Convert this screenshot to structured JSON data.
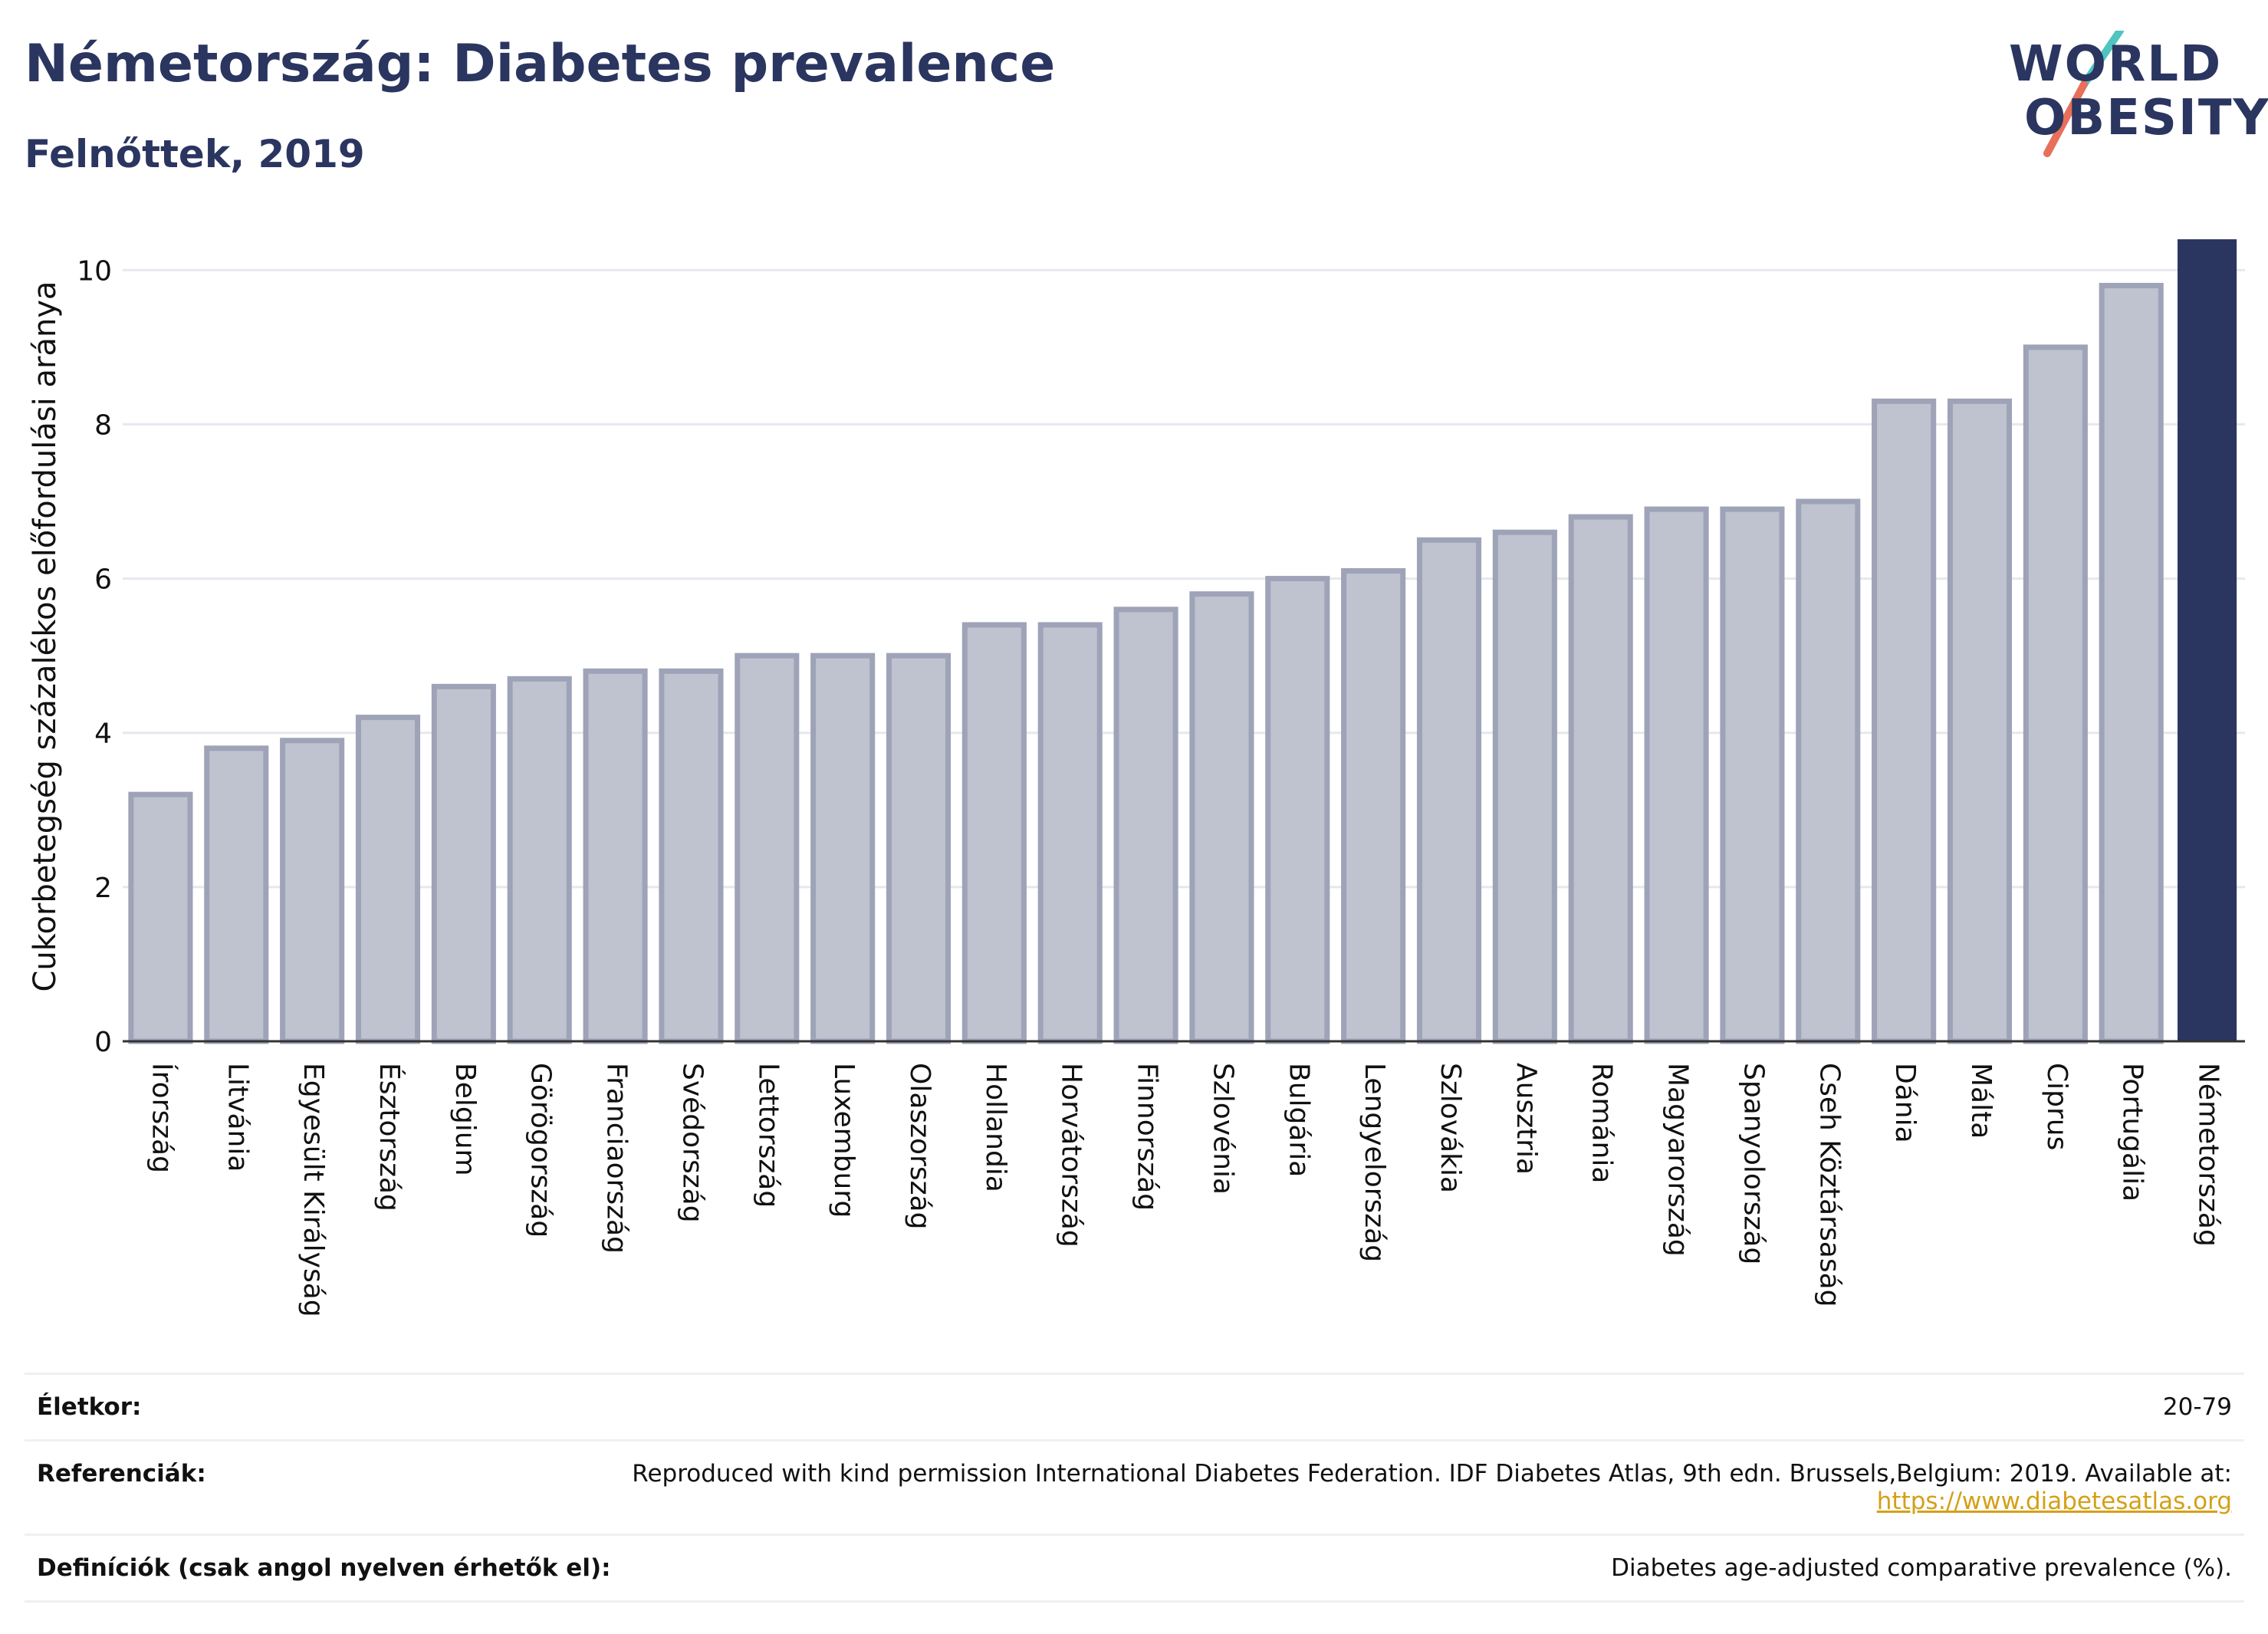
{
  "header": {
    "title": "Németország: Diabetes prevalence",
    "subtitle": "Felnőttek, 2019"
  },
  "logo": {
    "line1": "WORLD",
    "line2": "OBESITY"
  },
  "colors": {
    "bar": "#bfc2cf",
    "bar_stroke": "#9ea3b8",
    "highlight": "#2a3560",
    "brand": "#2a3560"
  },
  "chart_data": {
    "type": "bar",
    "title": "Németország: Diabetes prevalence",
    "subtitle": "Felnőttek, 2019",
    "xlabel": "",
    "ylabel": "Cukorbetegség százalékos előfordulási aránya",
    "ylim": [
      0,
      10.5
    ],
    "yticks": [
      0,
      2,
      4,
      6,
      8,
      10
    ],
    "grid": true,
    "highlight": "Németország",
    "categories": [
      "Írország",
      "Litvánia",
      "Egyesült Királyság",
      "Észtország",
      "Belgium",
      "Görögország",
      "Franciaország",
      "Svédország",
      "Lettország",
      "Luxemburg",
      "Olaszország",
      "Hollandia",
      "Horvátország",
      "Finnország",
      "Szlovénia",
      "Bulgária",
      "Lengyelország",
      "Szlovákia",
      "Ausztria",
      "Románia",
      "Magyarország",
      "Spanyolország",
      "Cseh Köztársaság",
      "Dánia",
      "Málta",
      "Ciprus",
      "Portugália",
      "Németország"
    ],
    "values": [
      3.2,
      3.8,
      3.9,
      4.2,
      4.6,
      4.7,
      4.8,
      4.8,
      5.0,
      5.0,
      5.0,
      5.4,
      5.4,
      5.6,
      5.8,
      6.0,
      6.1,
      6.5,
      6.6,
      6.8,
      6.9,
      6.9,
      7.0,
      8.3,
      8.3,
      9.0,
      9.8,
      10.4
    ]
  },
  "footer": {
    "age_label": "Életkor:",
    "age_value": "20-79",
    "ref_label": "Referenciák:",
    "ref_text": "Reproduced with kind permission International Diabetes Federation. IDF Diabetes Atlas, 9th edn. Brussels,Belgium: 2019. Available at:",
    "ref_link": "https://www.diabetesatlas.org",
    "def_label": "Definíciók (csak angol nyelven érhetők el):",
    "def_value": "Diabetes age-adjusted comparative prevalence (%)."
  }
}
